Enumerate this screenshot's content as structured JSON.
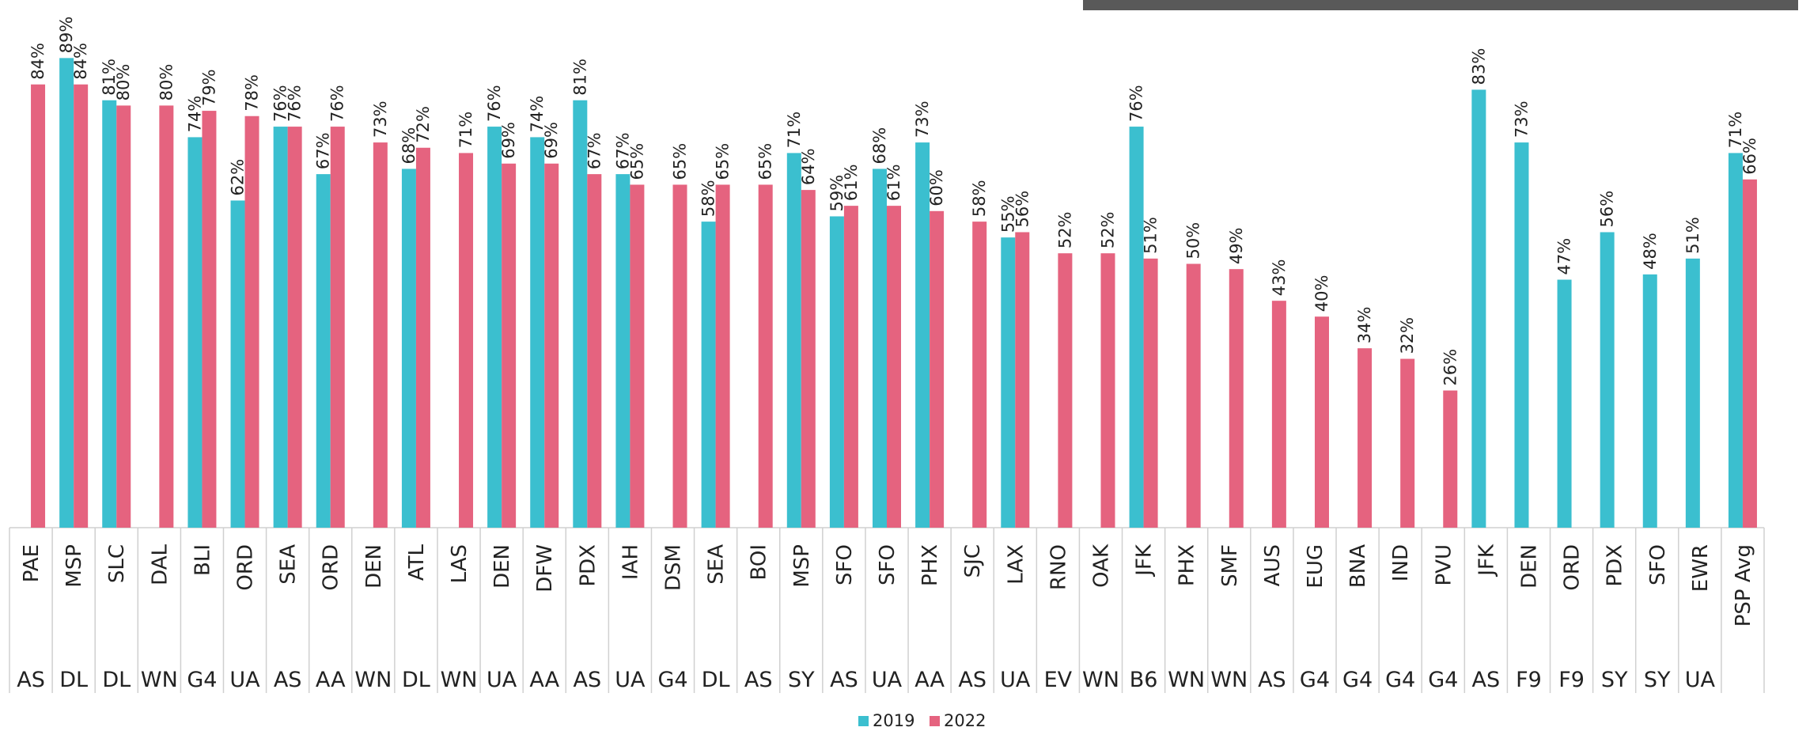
{
  "chart_data": {
    "type": "bar",
    "categories": [
      "PAE",
      "MSP",
      "SLC",
      "DAL",
      "BLI",
      "ORD",
      "SEA",
      "ORD",
      "DEN",
      "ATL",
      "LAS",
      "DEN",
      "DFW",
      "PDX",
      "IAH",
      "DSM",
      "SEA",
      "BOI",
      "MSP",
      "SFO",
      "SFO",
      "PHX",
      "SJC",
      "LAX",
      "RNO",
      "OAK",
      "JFK",
      "PHX",
      "SMF",
      "AUS",
      "EUG",
      "BNA",
      "IND",
      "PVU",
      "JFK",
      "DEN",
      "ORD",
      "PDX",
      "SFO",
      "EWR",
      "PSP Avg"
    ],
    "groups": [
      "AS",
      "DL",
      "DL",
      "WN",
      "G4",
      "UA",
      "AS",
      "AA",
      "WN",
      "DL",
      "WN",
      "UA",
      "AA",
      "AS",
      "UA",
      "G4",
      "DL",
      "AS",
      "SY",
      "AS",
      "UA",
      "AA",
      "AS",
      "UA",
      "EV",
      "WN",
      "B6",
      "WN",
      "WN",
      "AS",
      "G4",
      "G4",
      "G4",
      "G4",
      "AS",
      "F9",
      "F9",
      "SY",
      "SY",
      "UA",
      null
    ],
    "series": [
      {
        "name": "2019",
        "color": "#3bbfcf",
        "values": [
          null,
          89,
          81,
          null,
          74,
          62,
          76,
          67,
          null,
          68,
          null,
          76,
          74,
          81,
          67,
          null,
          58,
          null,
          71,
          59,
          68,
          73,
          null,
          55,
          null,
          null,
          76,
          null,
          null,
          null,
          null,
          null,
          null,
          null,
          83,
          73,
          47,
          56,
          48,
          51,
          71
        ],
        "value_labels": [
          null,
          "89%",
          "81%",
          null,
          "74%",
          "62%",
          "76%",
          "67%",
          null,
          "68%",
          null,
          "76%",
          "74%",
          "81%",
          "67%",
          null,
          "58%",
          null,
          "71%",
          "59%",
          "68%",
          "73%",
          null,
          "55%",
          null,
          null,
          "76%",
          null,
          null,
          null,
          null,
          null,
          null,
          null,
          "83%",
          "73%",
          "47%",
          "56%",
          "48%",
          "51%",
          "71%"
        ]
      },
      {
        "name": "2022",
        "color": "#e5637f",
        "values": [
          84,
          84,
          80,
          80,
          79,
          78,
          76,
          76,
          73,
          72,
          71,
          69,
          69,
          67,
          65,
          65,
          65,
          65,
          64,
          61,
          61,
          60,
          58,
          56,
          52,
          52,
          51,
          50,
          49,
          43,
          40,
          34,
          32,
          26,
          null,
          null,
          null,
          null,
          null,
          null,
          66
        ],
        "value_labels": [
          "84%",
          "84%",
          "80%",
          "80%",
          "79%",
          "78%",
          "76%",
          "76%",
          "73%",
          "72%",
          "71%",
          "69%",
          "69%",
          "67%",
          "65%",
          "65%",
          "65%",
          "65%",
          "64%",
          "61%",
          "61%",
          "60%",
          "58%",
          "56%",
          "52%",
          "52%",
          "51%",
          "50%",
          "49%",
          "43%",
          "40%",
          "34%",
          "32%",
          "26%",
          null,
          null,
          null,
          null,
          null,
          null,
          "66%"
        ]
      }
    ],
    "ylim": [
      0,
      100
    ]
  }
}
